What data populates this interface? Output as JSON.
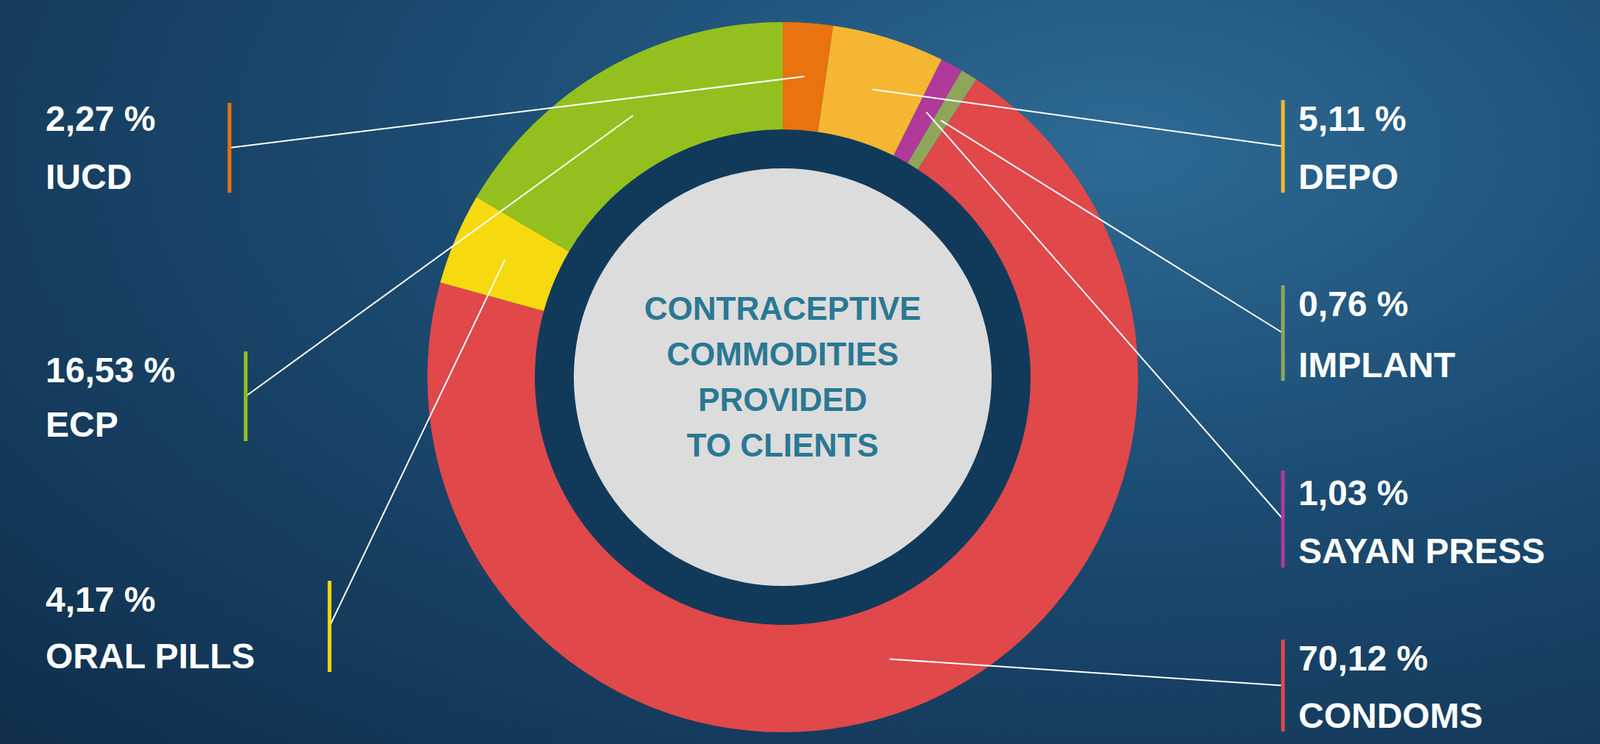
{
  "chart_data": {
    "type": "pie",
    "title": "CONTRACEPTIVE COMMODITIES PROVIDED TO CLIENTS",
    "categories": [
      "IUCD",
      "DEPO",
      "SAYAN PRESS",
      "IMPLANT",
      "CONDOMS",
      "ORAL PILLS",
      "ECP"
    ],
    "values": [
      2.27,
      5.11,
      1.03,
      0.76,
      70.12,
      4.17,
      16.53
    ],
    "value_labels": [
      "2,27 %",
      "5,11 %",
      "1,03 %",
      "0,76 %",
      "70,12 %",
      "4,17 %",
      "16,53 %"
    ],
    "colors": [
      "#e8730f",
      "#f5b731",
      "#b0399a",
      "#8fa65a",
      "#e0484a",
      "#f7d90f",
      "#93c01f"
    ],
    "data_labels": true
  }
}
